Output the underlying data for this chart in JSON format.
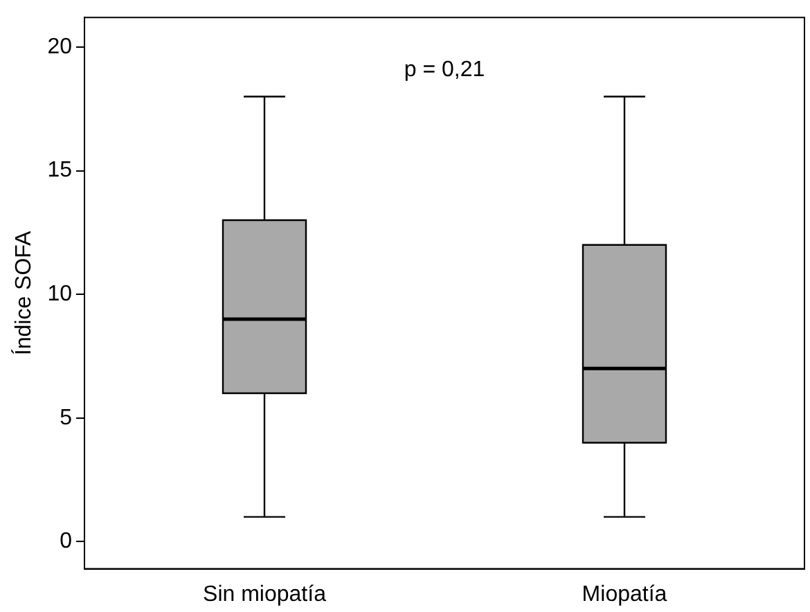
{
  "chart_data": {
    "type": "box",
    "ylabel": "Índice SOFA",
    "categories": [
      "Sin miopatía",
      "Miopatía"
    ],
    "series": [
      {
        "color": "#a9a9a9",
        "boxes": [
          {
            "low": 1,
            "q1": 6,
            "median": 9,
            "q3": 13,
            "high": 18
          },
          {
            "low": 1,
            "q1": 4,
            "median": 7,
            "q3": 12,
            "high": 18
          }
        ]
      }
    ],
    "ylim": [
      -1.1,
      21.2
    ],
    "yticks": [
      0,
      5,
      10,
      15,
      20
    ],
    "grid": false,
    "legend": false,
    "annotations": [
      "p = 0,21"
    ]
  }
}
